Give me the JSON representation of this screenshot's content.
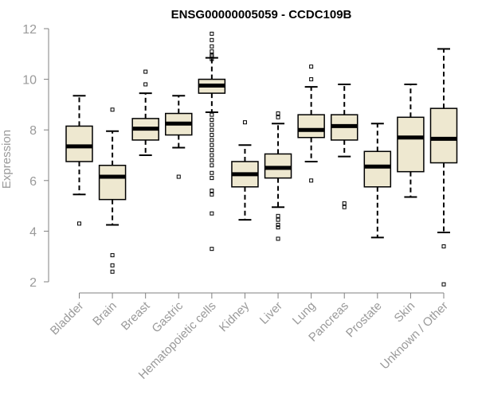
{
  "chart_data": {
    "type": "boxplot",
    "title": "ENSG00000005059 - CCDC109B",
    "ylabel": "Expression",
    "xlabel": "",
    "ylim": [
      1.9,
      12.0
    ],
    "yticks": [
      2,
      4,
      6,
      8,
      10,
      12
    ],
    "grid": false,
    "legend": "none",
    "box_fill": "#EEE8D0",
    "stroke_color": "#000000",
    "axis_color": "#808080",
    "categories": [
      "Bladder",
      "Brain",
      "Breast",
      "Gastric",
      "Hematopoietic cells",
      "Kidney",
      "Liver",
      "Lung",
      "Pancreas",
      "Prostate",
      "Skin",
      "Unknown / Other"
    ],
    "boxes": [
      {
        "label": "Bladder",
        "whisker_low": 5.45,
        "q1": 6.75,
        "median": 7.35,
        "q3": 8.15,
        "whisker_high": 9.35,
        "outliers": [
          4.3
        ]
      },
      {
        "label": "Brain",
        "whisker_low": 4.25,
        "q1": 5.25,
        "median": 6.15,
        "q3": 6.6,
        "whisker_high": 7.95,
        "outliers": [
          8.8,
          3.05,
          2.65,
          2.4
        ]
      },
      {
        "label": "Breast",
        "whisker_low": 7.0,
        "q1": 7.6,
        "median": 8.05,
        "q3": 8.45,
        "whisker_high": 9.45,
        "outliers": [
          10.3,
          9.8
        ]
      },
      {
        "label": "Gastric",
        "whisker_low": 7.3,
        "q1": 7.8,
        "median": 8.25,
        "q3": 8.65,
        "whisker_high": 9.35,
        "outliers": [
          6.15
        ]
      },
      {
        "label": "Hematopoietic cells",
        "whisker_low": 8.7,
        "q1": 9.45,
        "median": 9.75,
        "q3": 10.0,
        "whisker_high": 10.85,
        "outliers": [
          11.8,
          11.55,
          11.3,
          11.1,
          10.95,
          10.9,
          10.8,
          8.6,
          8.4,
          8.2,
          8.0,
          7.8,
          7.6,
          7.4,
          7.2,
          7.0,
          6.8,
          6.6,
          6.3,
          6.1,
          5.6,
          5.45,
          4.7,
          3.3
        ]
      },
      {
        "label": "Kidney",
        "whisker_low": 4.45,
        "q1": 5.75,
        "median": 6.25,
        "q3": 6.75,
        "whisker_high": 7.4,
        "outliers": [
          8.3
        ]
      },
      {
        "label": "Liver",
        "whisker_low": 4.95,
        "q1": 6.1,
        "median": 6.5,
        "q3": 7.05,
        "whisker_high": 8.25,
        "outliers": [
          8.65,
          8.5,
          4.6,
          4.45,
          4.25,
          4.15,
          3.7
        ]
      },
      {
        "label": "Lung",
        "whisker_low": 6.75,
        "q1": 7.7,
        "median": 8.0,
        "q3": 8.6,
        "whisker_high": 9.7,
        "outliers": [
          10.5,
          10.0,
          6.0
        ]
      },
      {
        "label": "Pancreas",
        "whisker_low": 6.95,
        "q1": 7.6,
        "median": 8.15,
        "q3": 8.6,
        "whisker_high": 9.8,
        "outliers": [
          5.1,
          4.95
        ]
      },
      {
        "label": "Prostate",
        "whisker_low": 3.75,
        "q1": 5.75,
        "median": 6.55,
        "q3": 7.15,
        "whisker_high": 8.25,
        "outliers": []
      },
      {
        "label": "Skin",
        "whisker_low": 5.35,
        "q1": 6.35,
        "median": 7.7,
        "q3": 8.5,
        "whisker_high": 9.8,
        "outliers": []
      },
      {
        "label": "Unknown / Other",
        "whisker_low": 3.95,
        "q1": 6.7,
        "median": 7.65,
        "q3": 8.85,
        "whisker_high": 11.2,
        "outliers": [
          3.4,
          1.9
        ]
      }
    ]
  }
}
